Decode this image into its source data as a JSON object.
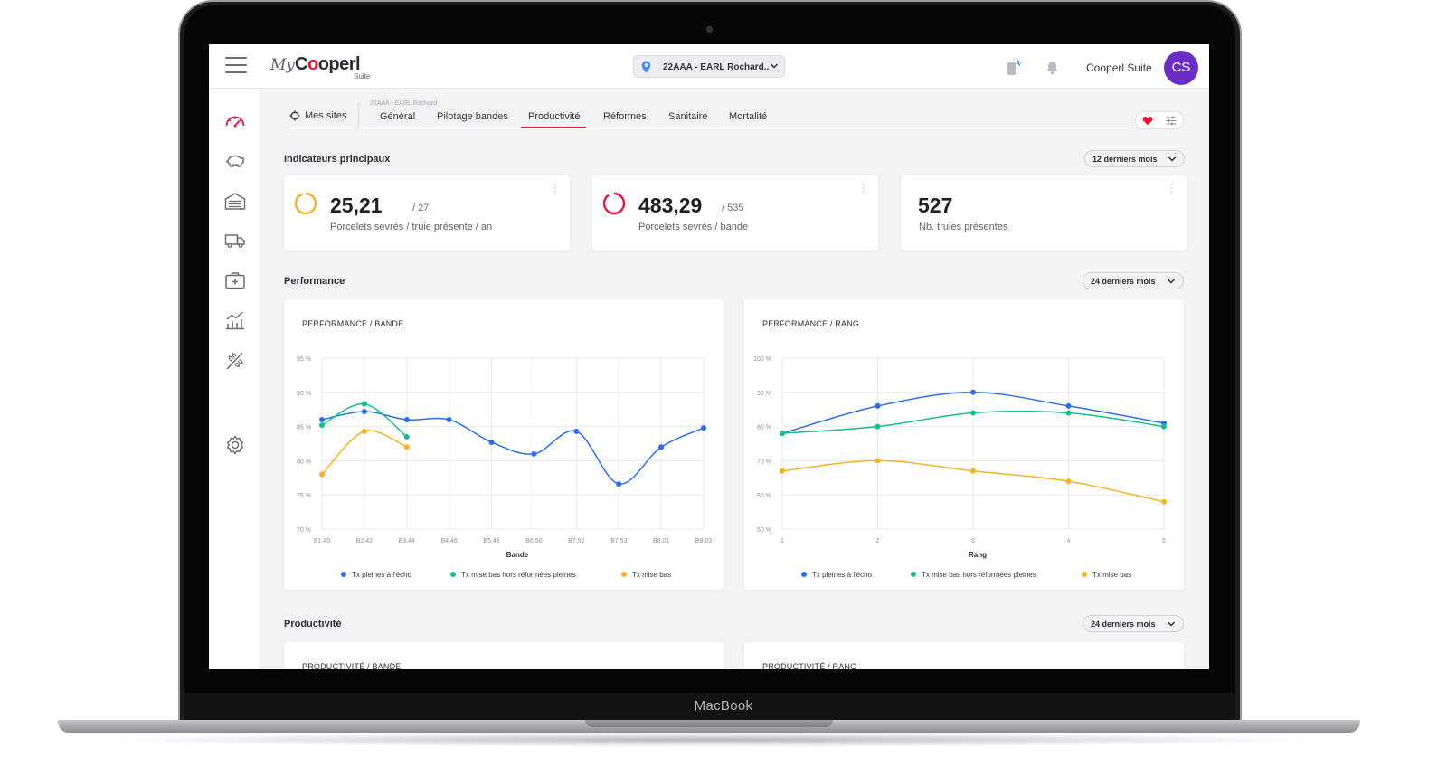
{
  "device": {
    "label": "MacBook"
  },
  "app": {
    "logo_my": "My",
    "logo_main_pre": "C",
    "logo_main_o": "o",
    "logo_main_post": "operl",
    "logo_sub": "Suite",
    "site_selector": "22AAA - EARL Rochard..",
    "user_name": "Cooperl Suite",
    "avatar_initials": "CS"
  },
  "sidebar": {
    "items": [
      "dashboard-icon",
      "pig-icon",
      "building-icon",
      "truck-icon",
      "medical-kit-icon",
      "analytics-icon",
      "feed-icon",
      "settings-icon"
    ]
  },
  "tabs": {
    "mes_sites": "Mes sites",
    "site_sublabel": "22AAA - EARL Rochard",
    "items": [
      "Général",
      "Pilotage bandes",
      "Productivité",
      "Réformes",
      "Sanitaire",
      "Mortalité"
    ],
    "active": "Productivité"
  },
  "sections": {
    "indicateurs": {
      "title": "Indicateurs principaux",
      "period": "12 derniers mois"
    },
    "performance": {
      "title": "Performance",
      "period": "24 derniers mois"
    },
    "productivite": {
      "title": "Productivité",
      "period": "24 derniers mois"
    }
  },
  "kpis": [
    {
      "value": "25,21",
      "target": "/ 27",
      "label": "Porcelets sevrés / truie présente / an",
      "ring_color": "#f4b32b",
      "progress": 0.93
    },
    {
      "value": "483,29",
      "target": "/ 535",
      "label": "Porcelets sevrés / bande",
      "ring_color": "#e2163c",
      "progress": 0.9
    },
    {
      "value": "527",
      "target": "",
      "label": "Nb. truies présentes"
    }
  ],
  "lower_cards": {
    "left_title": "PRODUCTIVITÉ / BANDE",
    "right_title": "PRODUCTIVITÉ / RANG"
  },
  "colors": {
    "blue": "#2d6ee8",
    "green": "#18be8a",
    "yellow": "#f4b32b",
    "accent": "#e2163c"
  },
  "chart_data": [
    {
      "type": "line",
      "title": "PERFORMANCE / BANDE",
      "xlabel": "Bande",
      "ylabel": "",
      "categories": [
        "B1.40",
        "B2.42",
        "B3.44",
        "B4.46",
        "B5.48",
        "B6.50",
        "B7.52",
        "B7.53",
        "B8.01",
        "B9.03"
      ],
      "x_values": [
        0,
        1,
        2,
        3,
        4,
        5,
        6,
        7,
        8,
        9
      ],
      "ylim": [
        70,
        95
      ],
      "yticks": [
        70,
        75,
        80,
        85,
        90,
        95
      ],
      "ytick_labels": [
        "70 %",
        "75 %",
        "80 %",
        "85 %",
        "90 %",
        "95 %"
      ],
      "grid": true,
      "legend_position": "bottom",
      "series": [
        {
          "name": "Tx pleines à l'écho",
          "color": "#2d6ee8",
          "x": [
            0,
            1,
            2,
            3,
            4,
            5,
            6,
            7,
            8,
            9
          ],
          "values": [
            86,
            87.2,
            86,
            86,
            82.7,
            81,
            84.3,
            76.6,
            82,
            84.8
          ]
        },
        {
          "name": "Tx mise bas hors réformées pleines",
          "color": "#18be8a",
          "x": [
            0,
            1,
            2
          ],
          "values": [
            85.2,
            88.3,
            83.5
          ]
        },
        {
          "name": "Tx mise bas",
          "color": "#f4b32b",
          "x": [
            0,
            1,
            2
          ],
          "values": [
            78,
            84.3,
            82
          ]
        }
      ]
    },
    {
      "type": "line",
      "title": "PERFORMANCE / RANG",
      "xlabel": "Rang",
      "ylabel": "",
      "categories": [
        "1",
        "2",
        "3",
        "4",
        "5"
      ],
      "x_values": [
        0,
        1,
        2,
        3,
        4
      ],
      "ylim": [
        50,
        100
      ],
      "yticks": [
        50,
        60,
        70,
        80,
        90,
        100
      ],
      "ytick_labels": [
        "50 %",
        "60 %",
        "70 %",
        "80 %",
        "90 %",
        "100 %"
      ],
      "grid": true,
      "legend_position": "bottom",
      "series": [
        {
          "name": "Tx pleines à l'écho",
          "color": "#2d6ee8",
          "x": [
            0,
            1,
            2,
            3,
            4
          ],
          "values": [
            78,
            86,
            90,
            86,
            81
          ]
        },
        {
          "name": "Tx mise bas hors réformées pleines",
          "color": "#18be8a",
          "x": [
            0,
            1,
            2,
            3,
            4
          ],
          "values": [
            78,
            80,
            84,
            84,
            80
          ]
        },
        {
          "name": "Tx mise bas",
          "color": "#f4b32b",
          "x": [
            0,
            1,
            2,
            3,
            4
          ],
          "values": [
            67,
            70,
            67,
            64,
            58
          ]
        }
      ]
    }
  ]
}
